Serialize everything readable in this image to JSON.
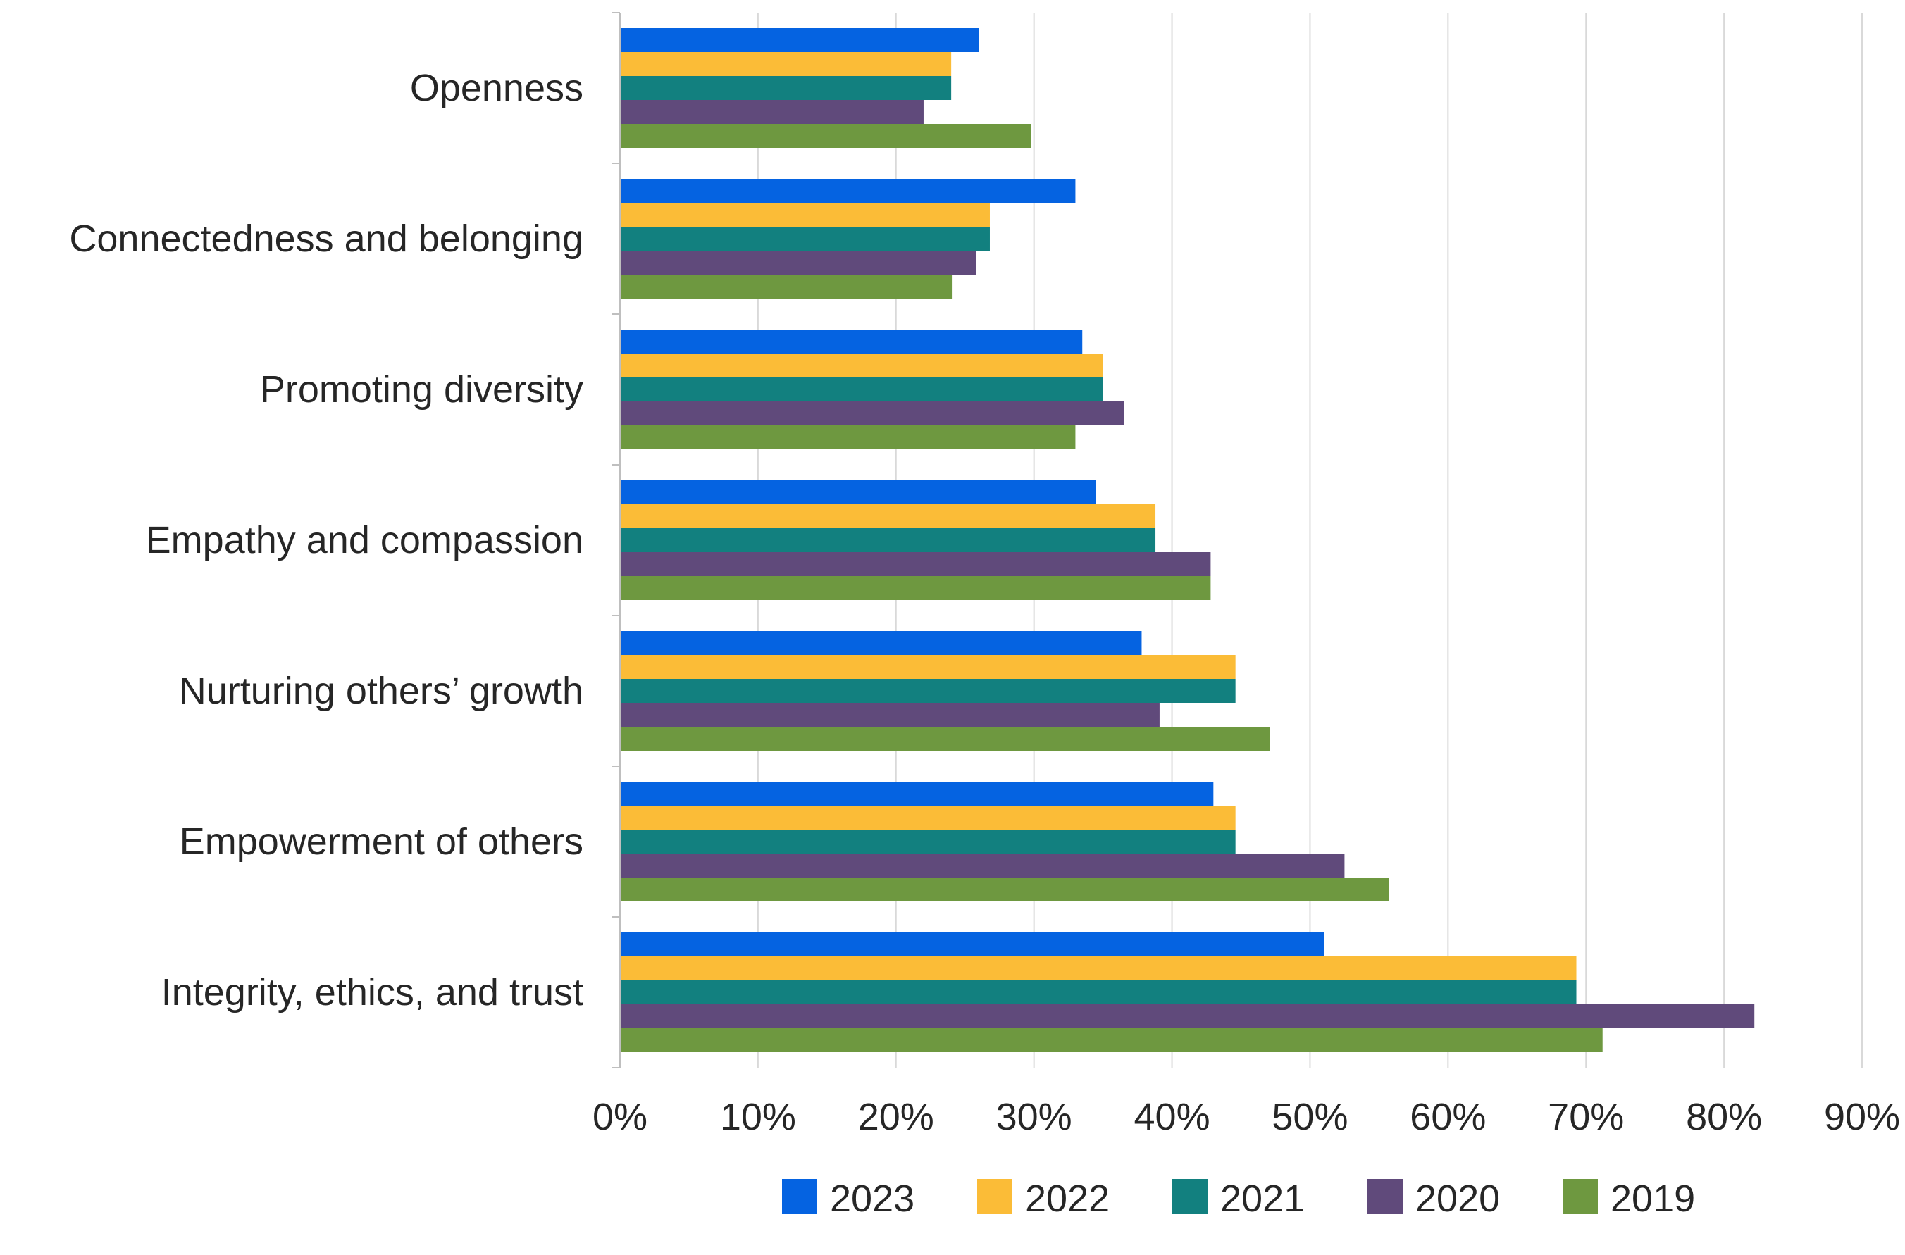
{
  "chart_data": {
    "type": "bar",
    "orientation": "horizontal",
    "title": "",
    "xlabel": "",
    "ylabel": "",
    "xlim": [
      0,
      90
    ],
    "x_ticks": [
      "0%",
      "10%",
      "20%",
      "30%",
      "40%",
      "50%",
      "60%",
      "70%",
      "80%",
      "90%"
    ],
    "grid": "vertical gridlines",
    "legend_position": "bottom",
    "categories": [
      "Openness",
      "Connectedness and belonging",
      "Promoting diversity",
      "Empathy and compassion",
      "Nurturing others’ growth",
      "Empowerment of others",
      "Integrity, ethics, and trust"
    ],
    "series": [
      {
        "name": "2023",
        "color": "#0563E1",
        "values": [
          26,
          33,
          33.5,
          34.5,
          37.8,
          43,
          51
        ]
      },
      {
        "name": "2022",
        "color": "#FBBC37",
        "values": [
          24,
          26.8,
          35,
          38.8,
          44.6,
          44.6,
          69.3
        ]
      },
      {
        "name": "2021",
        "color": "#12807F",
        "values": [
          24,
          26.8,
          35,
          38.8,
          44.6,
          44.6,
          69.3
        ]
      },
      {
        "name": "2020",
        "color": "#604A7B",
        "values": [
          22,
          25.8,
          36.5,
          42.8,
          39.1,
          52.5,
          82.2
        ]
      },
      {
        "name": "2019",
        "color": "#6E9840",
        "values": [
          29.8,
          24.1,
          33,
          42.8,
          47.1,
          55.7,
          71.2
        ]
      }
    ]
  }
}
